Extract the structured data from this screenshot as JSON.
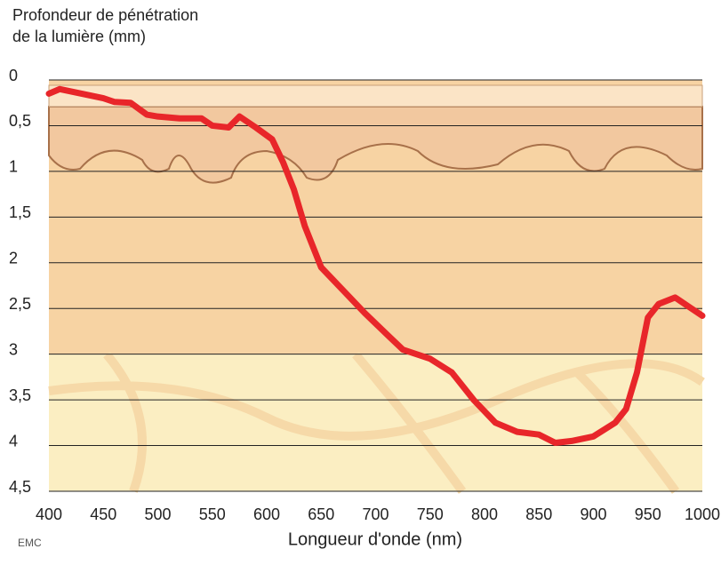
{
  "chart_data": {
    "type": "line",
    "ylabel": [
      "Profondeur de pénétration",
      "de la lumière (mm)"
    ],
    "xlabel": "Longueur d'onde (nm)",
    "logo": "EMC",
    "x": [
      400,
      410,
      430,
      450,
      460,
      475,
      490,
      500,
      520,
      540,
      550,
      565,
      575,
      590,
      605,
      615,
      625,
      635,
      650,
      670,
      690,
      710,
      725,
      750,
      770,
      790,
      810,
      830,
      850,
      865,
      880,
      900,
      920,
      930,
      940,
      950,
      960,
      975,
      990,
      1000
    ],
    "series": [
      {
        "color": "#e8262a",
        "values": [
          0.15,
          0.1,
          0.15,
          0.2,
          0.24,
          0.25,
          0.38,
          0.4,
          0.42,
          0.42,
          0.5,
          0.52,
          0.4,
          0.52,
          0.65,
          0.9,
          1.2,
          1.6,
          2.05,
          2.3,
          2.55,
          2.78,
          2.95,
          3.05,
          3.2,
          3.5,
          3.75,
          3.85,
          3.88,
          3.97,
          3.95,
          3.9,
          3.75,
          3.6,
          3.2,
          2.6,
          2.45,
          2.38,
          2.5,
          2.58
        ]
      }
    ],
    "xlim": [
      400,
      1000
    ],
    "xticks": [
      400,
      450,
      500,
      550,
      600,
      650,
      700,
      750,
      800,
      850,
      900,
      950,
      1000
    ],
    "ylim": [
      0,
      4.5
    ],
    "y_inverted": true,
    "yticks": [
      0,
      {
        "value": 0.5,
        "label": "0,5"
      },
      1,
      {
        "value": 1.5,
        "label": "1,5"
      },
      2,
      {
        "value": 2.5,
        "label": "2,5"
      },
      3,
      {
        "value": 3.5,
        "label": "3,5"
      },
      4,
      {
        "value": 4.5,
        "label": "4,5"
      }
    ],
    "grid": true
  }
}
